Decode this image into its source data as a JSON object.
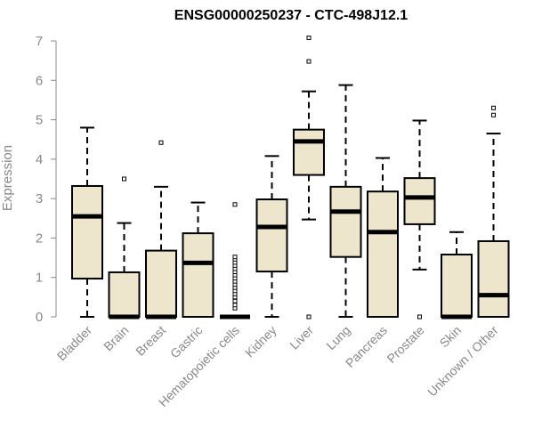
{
  "chart_data": {
    "type": "boxplot",
    "title": "ENSG00000250237 - CTC-498J12.1",
    "xlabel": "",
    "ylabel": "Expression",
    "ylim": [
      0,
      7
    ],
    "yticks": [
      "0",
      "1",
      "2",
      "3",
      "4",
      "5",
      "6",
      "7"
    ],
    "grid": false,
    "colors": {
      "box_fill": "#ede6cc",
      "line": "#000000",
      "axis_text": "#888888"
    },
    "categories": [
      "Bladder",
      "Brain",
      "Breast",
      "Gastric",
      "Hematopoietic cells",
      "Kidney",
      "Liver",
      "Lung",
      "Pancreas",
      "Prostate",
      "Skin",
      "Unknown / Other"
    ],
    "boxes": [
      {
        "name": "Bladder",
        "lower_whisker": 0,
        "q1": 0.97,
        "median": 2.55,
        "q3": 3.32,
        "upper_whisker": 4.8,
        "outliers": []
      },
      {
        "name": "Brain",
        "lower_whisker": 0,
        "q1": 0,
        "median": 0,
        "q3": 1.13,
        "upper_whisker": 2.38,
        "outliers": [
          3.5
        ]
      },
      {
        "name": "Breast",
        "lower_whisker": 0,
        "q1": 0,
        "median": 0,
        "q3": 1.68,
        "upper_whisker": 3.3,
        "outliers": [
          4.42
        ]
      },
      {
        "name": "Gastric",
        "lower_whisker": 0,
        "q1": 0,
        "median": 1.37,
        "q3": 2.12,
        "upper_whisker": 2.9,
        "outliers": []
      },
      {
        "name": "Hematopoietic cells",
        "lower_whisker": 0,
        "q1": 0,
        "median": 0,
        "q3": 0,
        "upper_whisker": 0,
        "outliers": [
          0.22,
          0.3,
          0.4,
          0.5,
          0.58,
          0.66,
          0.74,
          0.82,
          0.9,
          0.98,
          1.06,
          1.14,
          1.22,
          1.3,
          1.38,
          1.46,
          1.52,
          2.85
        ]
      },
      {
        "name": "Kidney",
        "lower_whisker": 0,
        "q1": 1.15,
        "median": 2.28,
        "q3": 2.98,
        "upper_whisker": 4.08,
        "outliers": []
      },
      {
        "name": "Liver",
        "lower_whisker": 2.47,
        "q1": 3.6,
        "median": 4.45,
        "q3": 4.75,
        "upper_whisker": 5.72,
        "outliers": [
          0,
          6.48,
          7.08
        ]
      },
      {
        "name": "Lung",
        "lower_whisker": 0,
        "q1": 1.52,
        "median": 2.67,
        "q3": 3.3,
        "upper_whisker": 5.88,
        "outliers": []
      },
      {
        "name": "Pancreas",
        "lower_whisker": 0,
        "q1": 0,
        "median": 2.15,
        "q3": 3.18,
        "upper_whisker": 4.03,
        "outliers": []
      },
      {
        "name": "Prostate",
        "lower_whisker": 1.2,
        "q1": 2.35,
        "median": 3.03,
        "q3": 3.52,
        "upper_whisker": 4.98,
        "outliers": [
          0
        ]
      },
      {
        "name": "Skin",
        "lower_whisker": 0,
        "q1": 0,
        "median": 0,
        "q3": 1.58,
        "upper_whisker": 2.15,
        "outliers": []
      },
      {
        "name": "Unknown / Other",
        "lower_whisker": 0,
        "q1": 0,
        "median": 0.55,
        "q3": 1.92,
        "upper_whisker": 4.65,
        "outliers": [
          5.12,
          5.3
        ]
      }
    ]
  }
}
